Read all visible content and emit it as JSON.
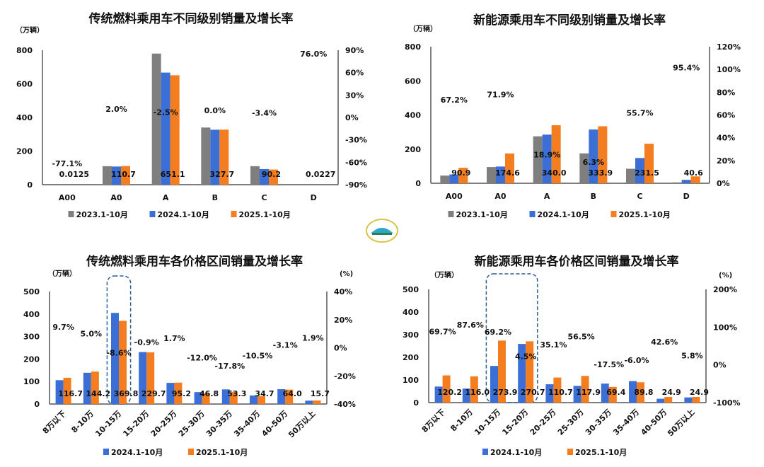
{
  "colors": {
    "2023": "#7f7f7f",
    "2024": "#3b6fd6",
    "2025": "#f47d20",
    "negative": "#e8303a",
    "axis": "#555555",
    "highlight_box": "#2f5f8f"
  },
  "chart_data": [
    {
      "type": "bar",
      "title": "传统燃料乘用车不同级别销量及增长率",
      "ylabel": "（万辆）",
      "y2label": "",
      "ylim": [
        0,
        800
      ],
      "yticks": [
        0,
        200,
        400,
        600,
        800
      ],
      "y2lim": [
        -90,
        90
      ],
      "y2ticks": [
        "-90%",
        "-60%",
        "-30%",
        "0%",
        "30%",
        "60%",
        "90%"
      ],
      "categories": [
        "A00",
        "A0",
        "A",
        "B",
        "C",
        "D"
      ],
      "series": [
        {
          "name": "2023.1-10月",
          "values": [
            0.05,
            110,
            780,
            340,
            110,
            0.05
          ]
        },
        {
          "name": "2024.1-10月",
          "values": [
            0.05,
            108,
            667,
            327,
            93,
            0.01
          ]
        },
        {
          "name": "2025.1-10月",
          "values": [
            0.0125,
            110.7,
            651.1,
            327.7,
            90.2,
            0.0227
          ]
        }
      ],
      "value_labels": [
        "0.0125",
        "110.7",
        "651.1",
        "327.7",
        "90.2",
        "0.0227"
      ],
      "growth": [
        -77.1,
        2.0,
        -2.5,
        0.0,
        -3.4,
        76.0
      ],
      "growth_labels": [
        "-77.1%",
        "2.0%",
        "-2.5%",
        "0.0%",
        "-3.4%",
        "76.0%"
      ],
      "highlight": [],
      "rotate_x": false,
      "grid": false,
      "legend": "bottom"
    },
    {
      "type": "bar",
      "title": "新能源乘用车不同级别销量及增长率",
      "ylabel": "（万辆）",
      "y2label": "",
      "ylim": [
        0,
        800
      ],
      "yticks": [
        0,
        200,
        400,
        600,
        800
      ],
      "y2lim": [
        0,
        120
      ],
      "y2ticks": [
        "0%",
        "20%",
        "40%",
        "60%",
        "80%",
        "100%",
        "120%"
      ],
      "categories": [
        "A00",
        "A0",
        "A",
        "B",
        "C",
        "D"
      ],
      "series": [
        {
          "name": "2023.1-10月",
          "values": [
            45,
            95,
            275,
            175,
            85,
            5
          ]
        },
        {
          "name": "2024.1-10月",
          "values": [
            52,
            98,
            285,
            315,
            148,
            20
          ]
        },
        {
          "name": "2025.1-10月",
          "values": [
            90.9,
            174.6,
            340.0,
            333.9,
            231.5,
            40.6
          ]
        }
      ],
      "value_labels": [
        "90.9",
        "174.6",
        "340.0",
        "333.9",
        "231.5",
        "40.6"
      ],
      "growth": [
        67.2,
        71.9,
        18.9,
        6.3,
        55.7,
        95.4
      ],
      "growth_labels": [
        "67.2%",
        "71.9%",
        "18.9%",
        "6.3%",
        "55.7%",
        "95.4%"
      ],
      "highlight": [],
      "rotate_x": false,
      "grid": false,
      "legend": "bottom"
    },
    {
      "type": "bar",
      "title": "传统燃料乘用车各价格区间销量及增长率",
      "ylabel": "（万辆）",
      "y2label": "(%)",
      "ylim": [
        0,
        500
      ],
      "yticks": [
        0,
        100,
        200,
        300,
        400,
        500
      ],
      "y2lim": [
        -40,
        40
      ],
      "y2ticks": [
        "-40%",
        "-20%",
        "0%",
        "20%",
        "40%"
      ],
      "categories": [
        "8万以下",
        "8-10万",
        "10-15万",
        "15-20万",
        "20-25万",
        "25-30万",
        "30-35万",
        "35-40万",
        "40-50万",
        "50万以上"
      ],
      "series": [
        {
          "name": "2024.1-10月",
          "values": [
            106,
            139,
            405,
            231,
            94,
            53,
            65,
            38,
            66,
            15
          ]
        },
        {
          "name": "2025.1-10月",
          "values": [
            116.7,
            144.2,
            369.8,
            229.7,
            95.2,
            46.8,
            53.3,
            34.7,
            64.0,
            15.7
          ]
        }
      ],
      "value_labels": [
        "116.7",
        "144.2",
        "369.8",
        "229.7",
        "95.2",
        "46.8",
        "53.3",
        "34.7",
        "64.0",
        "15.7"
      ],
      "growth": [
        9.7,
        5.0,
        -8.6,
        -0.9,
        1.7,
        -12.0,
        -17.8,
        -10.5,
        -3.1,
        1.9
      ],
      "growth_labels": [
        "9.7%",
        "5.0%",
        "-8.6%",
        "-0.9%",
        "1.7%",
        "-12.0%",
        "-17.8%",
        "-10.5%",
        "-3.1%",
        "1.9%"
      ],
      "highlight": [
        "10-15万"
      ],
      "rotate_x": true,
      "grid": false,
      "legend": "bottom"
    },
    {
      "type": "bar",
      "title": "新能源乘用车各价格区间销量及增长率",
      "ylabel": "（万辆）",
      "y2label": "(%)",
      "ylim": [
        0,
        500
      ],
      "yticks": [
        0,
        100,
        200,
        300,
        400,
        500
      ],
      "y2lim": [
        -100,
        200
      ],
      "y2ticks": [
        "-100%",
        "0%",
        "100%",
        "200%"
      ],
      "categories": [
        "8万以下",
        "8-10万",
        "10-15万",
        "15-20万",
        "20-25万",
        "25-30万",
        "30-35万",
        "35-40万",
        "40-50万",
        "50万以上"
      ],
      "series": [
        {
          "name": "2024.1-10月",
          "values": [
            71,
            62,
            162,
            259,
            81,
            74,
            84,
            95,
            17,
            23
          ]
        },
        {
          "name": "2025.1-10月",
          "values": [
            120.2,
            116.0,
            273.9,
            270.7,
            110.7,
            117.9,
            69.4,
            89.8,
            24.9,
            24.9
          ]
        }
      ],
      "value_labels": [
        "120.2",
        "116.0",
        "273.9",
        "270.7",
        "110.7",
        "117.9",
        "69.4",
        "89.8",
        "24.9",
        "24.9"
      ],
      "growth": [
        69.7,
        87.6,
        69.2,
        4.5,
        35.1,
        56.5,
        -17.5,
        -6.0,
        42.6,
        5.8
      ],
      "growth_labels": [
        "69.7%",
        "87.6%",
        "69.2%",
        "4.5%",
        "35.1%",
        "56.5%",
        "-17.5%",
        "-6.0%",
        "42.6%",
        "5.8%"
      ],
      "highlight": [
        "10-15万",
        "15-20万"
      ],
      "rotate_x": true,
      "grid": false,
      "legend": "bottom"
    }
  ]
}
